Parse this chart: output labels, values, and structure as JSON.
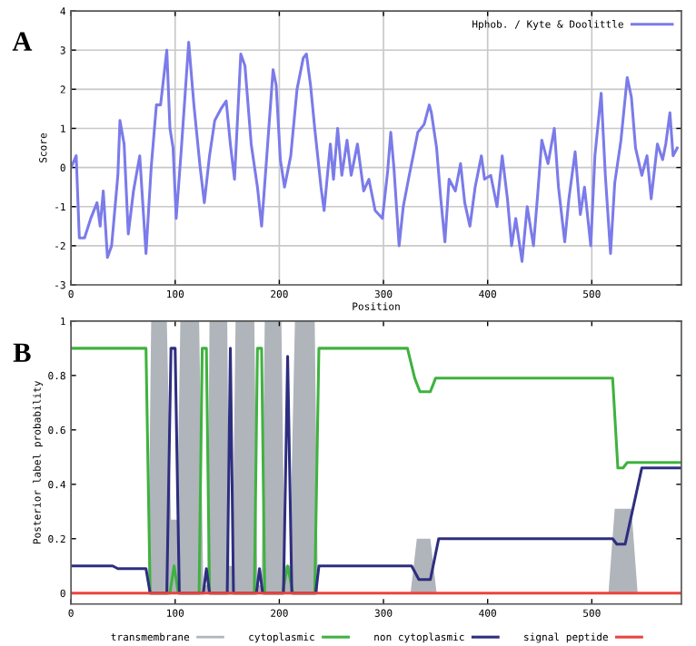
{
  "chart_data": [
    {
      "type": "line",
      "xlabel": "Position",
      "ylabel": "Score",
      "annotations": [
        "A"
      ],
      "xlim": [
        0,
        586
      ],
      "xticks": [
        0,
        100,
        200,
        300,
        400,
        500
      ],
      "ylim": [
        -3,
        4
      ],
      "yticks": [
        -3,
        -2,
        -1,
        0,
        1,
        2,
        3,
        4
      ],
      "grid": true,
      "legend": "top right",
      "series": [
        {
          "name": "Hphob. / Kyte & Doolittle",
          "color": "#7b7bea",
          "x": [
            0,
            5,
            8,
            13,
            19,
            25,
            28,
            31,
            35,
            39,
            45,
            47,
            51,
            55,
            60,
            66,
            72,
            77,
            82,
            86,
            92,
            95,
            98,
            101,
            106,
            113,
            118,
            124,
            128,
            133,
            138,
            144,
            149,
            153,
            157,
            163,
            167,
            173,
            179,
            183,
            188,
            194,
            197,
            201,
            205,
            211,
            217,
            223,
            226,
            230,
            234,
            240,
            243,
            249,
            252,
            256,
            260,
            265,
            269,
            275,
            281,
            286,
            292,
            299,
            304,
            307,
            310,
            315,
            319,
            324,
            330,
            333,
            339,
            344,
            346,
            351,
            355,
            359,
            363,
            369,
            374,
            378,
            383,
            388,
            394,
            397,
            403,
            409,
            414,
            419,
            423,
            427,
            433,
            438,
            444,
            448,
            452,
            458,
            464,
            468,
            474,
            478,
            484,
            489,
            493,
            499,
            503,
            509,
            513,
            518,
            522,
            528,
            534,
            538,
            542,
            548,
            553,
            557,
            563,
            568,
            571,
            575,
            578,
            582
          ],
          "values": [
            0,
            0.3,
            -1.8,
            -1.8,
            -1.3,
            -0.9,
            -1.5,
            -0.6,
            -2.3,
            -2.0,
            -0.2,
            1.2,
            0.6,
            -1.7,
            -0.6,
            0.3,
            -2.2,
            0,
            1.6,
            1.6,
            3.0,
            1.0,
            0.5,
            -1.3,
            0.5,
            3.2,
            1.6,
            0,
            -0.9,
            0.3,
            1.2,
            1.5,
            1.7,
            0.6,
            -0.3,
            2.9,
            2.6,
            0.6,
            -0.5,
            -1.5,
            0.3,
            2.5,
            2.1,
            0.2,
            -0.5,
            0.3,
            2.0,
            2.8,
            2.9,
            2.1,
            1.0,
            -0.5,
            -1.1,
            0.6,
            -0.3,
            1.0,
            -0.2,
            0.7,
            -0.2,
            0.6,
            -0.6,
            -0.3,
            -1.1,
            -1.3,
            -0.1,
            0.9,
            0,
            -2.0,
            -1.0,
            -0.3,
            0.5,
            0.9,
            1.1,
            1.6,
            1.4,
            0.5,
            -0.8,
            -1.9,
            -0.3,
            -0.6,
            0.1,
            -0.9,
            -1.5,
            -0.5,
            0.3,
            -0.3,
            -0.2,
            -1.0,
            0.3,
            -0.8,
            -2.0,
            -1.3,
            -2.4,
            -1.0,
            -2.0,
            -0.7,
            0.7,
            0.1,
            1.0,
            -0.5,
            -1.9,
            -0.8,
            0.4,
            -1.2,
            -0.5,
            -2.0,
            0.3,
            1.9,
            -0.2,
            -2.2,
            -0.4,
            0.7,
            2.3,
            1.8,
            0.5,
            -0.2,
            0.3,
            -0.8,
            0.6,
            0.2,
            0.6,
            1.4,
            0.3,
            0.5
          ]
        }
      ]
    },
    {
      "type": "line",
      "ylabel": "Posterior label probability",
      "annotations": [
        "B"
      ],
      "xlim": [
        0,
        586
      ],
      "xticks": [
        0,
        100,
        200,
        300,
        400,
        500
      ],
      "ylim": [
        -0.04,
        1.0
      ],
      "yticks": [
        0,
        0.2,
        0.4,
        0.6,
        0.8,
        1
      ],
      "legend": "bottom",
      "series": [
        {
          "name": "transmembrane",
          "type": "area",
          "color": "#b0b4bb",
          "x": [
            0,
            74,
            77,
            92,
            96,
            102,
            105,
            123,
            127,
            131,
            133,
            150,
            152,
            155,
            158,
            176,
            179,
            183,
            186,
            202,
            205,
            210,
            215,
            234,
            237,
            326,
            332,
            345,
            351,
            516,
            522,
            538,
            544,
            586
          ],
          "values": [
            0,
            0,
            1,
            1,
            0.27,
            0.27,
            1,
            1,
            0.03,
            0.03,
            1,
            1,
            0.1,
            0.1,
            1,
            1,
            0.03,
            0.03,
            1,
            1,
            0.1,
            0.1,
            1,
            1,
            0,
            0,
            0.2,
            0.2,
            0,
            0,
            0.31,
            0.31,
            0,
            0
          ]
        },
        {
          "name": "cytoplasmic",
          "color": "#3fb23f",
          "x": [
            0,
            72,
            76,
            95,
            99,
            103,
            123,
            126,
            130,
            133,
            176,
            179,
            183,
            186,
            203,
            208,
            213,
            234,
            238,
            323,
            330,
            335,
            345,
            350,
            520,
            525,
            530,
            534,
            586
          ],
          "values": [
            0.9,
            0.9,
            0,
            0,
            0.1,
            0,
            0,
            0.9,
            0.9,
            0,
            0,
            0.9,
            0.9,
            0,
            0,
            0.1,
            0,
            0,
            0.9,
            0.9,
            0.79,
            0.74,
            0.74,
            0.79,
            0.79,
            0.46,
            0.46,
            0.48,
            0.48
          ]
        },
        {
          "name": "non cytoplasmic",
          "color": "#2e2e80",
          "x": [
            0,
            40,
            45,
            72,
            76,
            92,
            96,
            100,
            104,
            127,
            130,
            133,
            150,
            153,
            156,
            178,
            181,
            184,
            204,
            208,
            212,
            235,
            238,
            327,
            334,
            345,
            353,
            520,
            524,
            532,
            548,
            586
          ],
          "values": [
            0.1,
            0.1,
            0.09,
            0.09,
            0,
            0,
            0.9,
            0.9,
            0,
            0,
            0.09,
            0,
            0,
            0.9,
            0,
            0,
            0.09,
            0,
            0,
            0.87,
            0,
            0,
            0.1,
            0.1,
            0.05,
            0.05,
            0.2,
            0.2,
            0.18,
            0.18,
            0.46,
            0.46
          ]
        },
        {
          "name": "signal peptide",
          "color": "#e8453c",
          "x": [
            0,
            150,
            300,
            450,
            586
          ],
          "values": [
            0,
            0,
            0,
            0,
            0
          ]
        }
      ]
    }
  ]
}
